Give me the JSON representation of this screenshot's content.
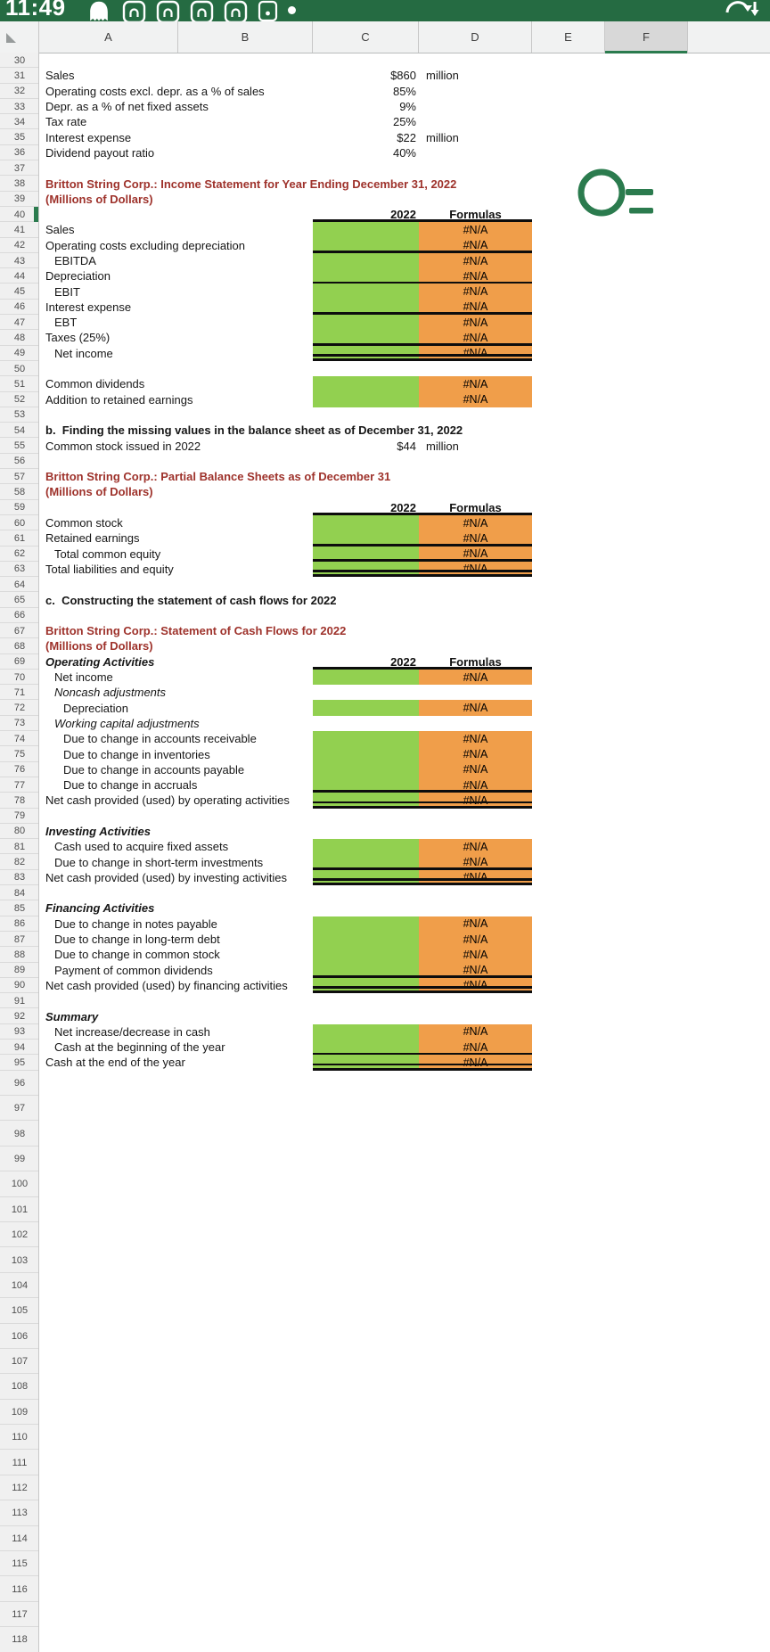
{
  "status_bar": {
    "time": "11:49",
    "icons": [
      "ghost-icon",
      "app-notification-icon",
      "app-notification-icon",
      "app-notification-icon",
      "app-notification-icon",
      "sim-notification-icon",
      "notification-dot-icon",
      "sync-icon"
    ]
  },
  "grid": {
    "column_letters": [
      "A",
      "B",
      "C",
      "D",
      "E",
      "F"
    ],
    "selected_column": "F",
    "selected_row": 40,
    "colors": {
      "statusbar_green": "#256b42",
      "accent_green": "#2b7b4e",
      "input_fill_green": "#92d050",
      "formula_fill_orange": "#f09e4a",
      "title_red": "#9e322b"
    },
    "empty_rows": {
      "from": 96,
      "to": 118
    },
    "rows": [
      {
        "n": 30,
        "t": "e"
      },
      {
        "n": 31,
        "t": "p",
        "label": "Sales",
        "value": "$860",
        "unit": "million"
      },
      {
        "n": 32,
        "t": "p",
        "label": "Operating costs excl. depr. as a % of sales",
        "value": "85%"
      },
      {
        "n": 33,
        "t": "p",
        "label": "Depr. as a % of net fixed assets",
        "value": "9%"
      },
      {
        "n": 34,
        "t": "p",
        "label": "Tax rate",
        "value": "25%"
      },
      {
        "n": 35,
        "t": "p",
        "label": "Interest expense",
        "value": "$22",
        "unit": "million"
      },
      {
        "n": 36,
        "t": "p",
        "label": "Dividend payout ratio",
        "value": "40%"
      },
      {
        "n": 37,
        "t": "e"
      },
      {
        "n": 38,
        "t": "t",
        "label": "Britton String Corp.: Income Statement for Year Ending December 31, 2022"
      },
      {
        "n": 39,
        "t": "t",
        "label": "(Millions of Dollars)"
      },
      {
        "n": 40,
        "t": "h",
        "c": "2022",
        "d": "Formulas",
        "sel": true
      },
      {
        "n": 41,
        "t": "d",
        "label": "Sales",
        "na": "#N/A"
      },
      {
        "n": 42,
        "t": "d",
        "label": "Operating costs excluding depreciation",
        "na": "#N/A",
        "b": "s"
      },
      {
        "n": 43,
        "t": "d",
        "label": "EBITDA",
        "i": 1,
        "na": "#N/A"
      },
      {
        "n": 44,
        "t": "d",
        "label": "Depreciation",
        "na": "#N/A",
        "b": "s"
      },
      {
        "n": 45,
        "t": "d",
        "label": "EBIT",
        "i": 1,
        "na": "#N/A"
      },
      {
        "n": 46,
        "t": "d",
        "label": "Interest expense",
        "na": "#N/A",
        "b": "s"
      },
      {
        "n": 47,
        "t": "d",
        "label": "EBT",
        "i": 1,
        "na": "#N/A"
      },
      {
        "n": 48,
        "t": "d",
        "label": "Taxes (25%)",
        "na": "#N/A",
        "b": "s"
      },
      {
        "n": 49,
        "t": "d",
        "label": "Net income",
        "i": 1,
        "na": "#N/A",
        "b": "d"
      },
      {
        "n": 50,
        "t": "e"
      },
      {
        "n": 51,
        "t": "d",
        "label": "Common dividends",
        "na": "#N/A"
      },
      {
        "n": 52,
        "t": "d",
        "label": "Addition to retained earnings",
        "na": "#N/A"
      },
      {
        "n": 53,
        "t": "e"
      },
      {
        "n": 54,
        "t": "b",
        "label": "b.  Finding the missing values in the balance sheet as of December 31, 2022"
      },
      {
        "n": 55,
        "t": "p",
        "label": "Common stock issued in 2022",
        "value": "$44",
        "unit": "million"
      },
      {
        "n": 56,
        "t": "e"
      },
      {
        "n": 57,
        "t": "t",
        "label": "Britton String Corp.: Partial Balance Sheets as of December 31"
      },
      {
        "n": 58,
        "t": "t",
        "label": "(Millions of Dollars)"
      },
      {
        "n": 59,
        "t": "h",
        "c": "2022",
        "d": "Formulas"
      },
      {
        "n": 60,
        "t": "d",
        "label": "Common stock",
        "na": "#N/A"
      },
      {
        "n": 61,
        "t": "d",
        "label": "Retained earnings",
        "na": "#N/A",
        "b": "s"
      },
      {
        "n": 62,
        "t": "d",
        "label": "Total common equity",
        "i": 1,
        "na": "#N/A",
        "b": "s"
      },
      {
        "n": 63,
        "t": "d",
        "label": "Total liabilities and equity",
        "na": "#N/A",
        "b": "d"
      },
      {
        "n": 64,
        "t": "e"
      },
      {
        "n": 65,
        "t": "b",
        "label": "c.  Constructing the statement of cash flows for 2022"
      },
      {
        "n": 66,
        "t": "e"
      },
      {
        "n": 67,
        "t": "t",
        "label": "Britton String Corp.: Statement of Cash Flows for 2022"
      },
      {
        "n": 68,
        "t": "t",
        "label": "(Millions of Dollars)"
      },
      {
        "n": 69,
        "t": "h",
        "label": "Operating Activities",
        "c": "2022",
        "d": "Formulas"
      },
      {
        "n": 70,
        "t": "d",
        "label": "Net income",
        "i": 1,
        "na": "#N/A"
      },
      {
        "n": 71,
        "t": "i",
        "label": "Noncash adjustments",
        "i": 1
      },
      {
        "n": 72,
        "t": "d",
        "label": "Depreciation",
        "i": 2,
        "na": "#N/A"
      },
      {
        "n": 73,
        "t": "i",
        "label": "Working capital adjustments",
        "i": 1
      },
      {
        "n": 74,
        "t": "d",
        "label": "Due to change in accounts receivable",
        "i": 2,
        "na": "#N/A"
      },
      {
        "n": 75,
        "t": "d",
        "label": "Due to change in inventories",
        "i": 2,
        "na": "#N/A"
      },
      {
        "n": 76,
        "t": "d",
        "label": "Due to change in accounts payable",
        "i": 2,
        "na": "#N/A"
      },
      {
        "n": 77,
        "t": "d",
        "label": "Due to change in accruals",
        "i": 2,
        "na": "#N/A",
        "b": "s"
      },
      {
        "n": 78,
        "t": "d",
        "label": "Net cash provided (used) by operating activities",
        "na": "#N/A",
        "b": "d"
      },
      {
        "n": 79,
        "t": "e"
      },
      {
        "n": 80,
        "t": "bi",
        "label": "Investing Activities"
      },
      {
        "n": 81,
        "t": "d",
        "label": "Cash used to acquire fixed assets",
        "i": 1,
        "na": "#N/A"
      },
      {
        "n": 82,
        "t": "d",
        "label": "Due to change in short-term investments",
        "i": 1,
        "na": "#N/A",
        "b": "s"
      },
      {
        "n": 83,
        "t": "d",
        "label": "Net cash provided (used) by investing activities",
        "na": "#N/A",
        "b": "d"
      },
      {
        "n": 84,
        "t": "e"
      },
      {
        "n": 85,
        "t": "bi",
        "label": "Financing Activities"
      },
      {
        "n": 86,
        "t": "d",
        "label": "Due to change in notes payable",
        "i": 1,
        "na": "#N/A"
      },
      {
        "n": 87,
        "t": "d",
        "label": "Due to change in long-term debt",
        "i": 1,
        "na": "#N/A"
      },
      {
        "n": 88,
        "t": "d",
        "label": "Due to change in common stock",
        "i": 1,
        "na": "#N/A"
      },
      {
        "n": 89,
        "t": "d",
        "label": "Payment of common dividends",
        "i": 1,
        "na": "#N/A",
        "b": "s"
      },
      {
        "n": 90,
        "t": "d",
        "label": "Net cash provided (used) by financing activities",
        "na": "#N/A",
        "b": "d"
      },
      {
        "n": 91,
        "t": "e"
      },
      {
        "n": 92,
        "t": "bi",
        "label": "Summary"
      },
      {
        "n": 93,
        "t": "d",
        "label": "Net increase/decrease in cash",
        "i": 1,
        "na": "#N/A"
      },
      {
        "n": 94,
        "t": "d",
        "label": "Cash at the beginning of the year",
        "i": 1,
        "na": "#N/A",
        "b": "s"
      },
      {
        "n": 95,
        "t": "d",
        "label": "Cash at the end of the year",
        "na": "#N/A",
        "b": "d"
      }
    ]
  }
}
